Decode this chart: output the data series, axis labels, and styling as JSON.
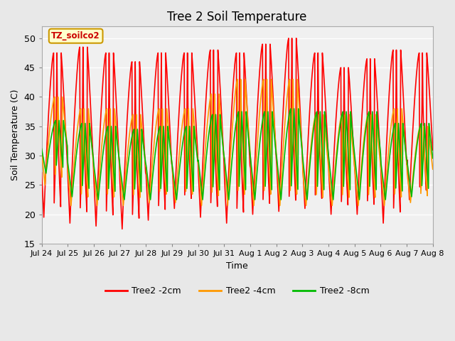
{
  "title": "Tree 2 Soil Temperature",
  "xlabel": "Time",
  "ylabel": "Soil Temperature (C)",
  "ylim": [
    15,
    52
  ],
  "yticks": [
    15,
    20,
    25,
    30,
    35,
    40,
    45,
    50
  ],
  "annotation_text": "TZ_soilco2",
  "annotation_bg": "#ffffcc",
  "annotation_border": "#cc9900",
  "bg_color": "#e8e8e8",
  "plot_bg": "#f0f0f0",
  "colors": {
    "2cm": "#ff0000",
    "4cm": "#ff9900",
    "8cm": "#00bb00"
  },
  "legend_labels": [
    "Tree2 -2cm",
    "Tree2 -4cm",
    "Tree2 -8cm"
  ],
  "xtick_labels": [
    "Jul 24",
    "Jul 25",
    "Jul 26",
    "Jul 27",
    "Jul 28",
    "Jul 29",
    "Jul 30",
    "Jul 31",
    "Aug 1",
    "Aug 2",
    "Aug 3",
    "Aug 4",
    "Aug 5",
    "Aug 6",
    "Aug 7",
    "Aug 8"
  ],
  "n_days": 15,
  "samples_per_day": 48,
  "day_peaks_2cm": [
    47.5,
    48.5,
    47.5,
    46.0,
    47.5,
    47.5,
    48.0,
    47.5,
    49.0,
    50.0,
    47.5,
    45.0,
    46.5,
    48.0,
    47.5
  ],
  "day_troughs_2cm": [
    19.5,
    18.5,
    18.0,
    17.5,
    19.0,
    21.0,
    19.5,
    18.5,
    20.0,
    20.5,
    21.0,
    20.0,
    20.0,
    18.5,
    22.5
  ],
  "day_peaks_4cm": [
    40.0,
    38.0,
    38.0,
    37.0,
    38.0,
    38.0,
    40.5,
    43.0,
    43.0,
    43.0,
    37.0,
    37.0,
    37.0,
    38.0,
    35.0
  ],
  "day_troughs_4cm": [
    25.0,
    21.5,
    21.5,
    21.5,
    22.0,
    22.0,
    21.5,
    21.5,
    21.5,
    21.5,
    21.5,
    21.5,
    21.5,
    21.5,
    22.0
  ],
  "day_peaks_8cm": [
    36.0,
    35.5,
    35.0,
    34.5,
    35.0,
    35.0,
    37.0,
    37.5,
    37.5,
    38.0,
    37.5,
    37.5,
    37.5,
    35.5,
    35.5
  ],
  "day_troughs_8cm": [
    27.0,
    23.0,
    22.5,
    22.5,
    22.5,
    22.5,
    22.5,
    22.5,
    22.5,
    22.5,
    22.5,
    22.5,
    22.5,
    22.5,
    23.0
  ],
  "peak_hour_2cm": 14.0,
  "peak_hour_4cm": 15.0,
  "peak_hour_8cm": 16.0,
  "linewidth": 1.2
}
